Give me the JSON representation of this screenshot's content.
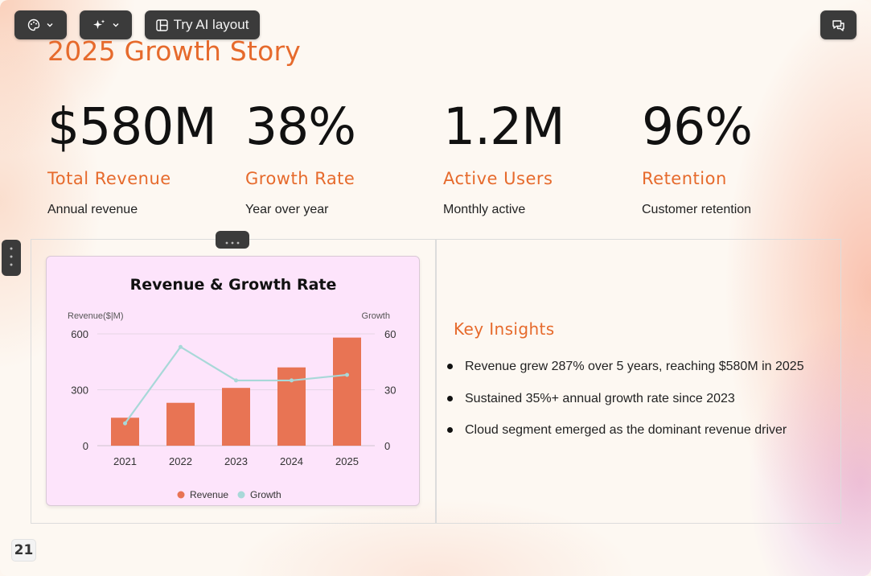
{
  "toolbar": {
    "theme_icon": "palette-icon",
    "ai_icon": "sparkle-icon",
    "layout_label": "Try AI layout",
    "layout_icon": "layout-icon",
    "comment_icon": "comment-icon"
  },
  "slide": {
    "title": "2025 Growth Story",
    "page_number": "21",
    "stats": [
      {
        "value": "$580M",
        "label": "Total Revenue",
        "sub": "Annual revenue"
      },
      {
        "value": "38%",
        "label": "Growth Rate",
        "sub": "Year over year"
      },
      {
        "value": "1.2M",
        "label": "Active Users",
        "sub": "Monthly active"
      },
      {
        "value": "96%",
        "label": "Retention",
        "sub": "Customer retention"
      }
    ],
    "insights": {
      "title": "Key Insights",
      "items": [
        "Revenue grew 287% over 5 years, reaching $580M in 2025",
        "Sustained 35%+ annual growth rate since 2023",
        "Cloud segment emerged as the dominant revenue driver"
      ]
    }
  },
  "colors": {
    "accent": "#e66a2c",
    "bar": "#e87454",
    "line": "#a8d8d8",
    "chart_bg": "#fde4fb"
  },
  "chart_data": {
    "type": "bar",
    "title": "Revenue & Growth Rate",
    "categories": [
      "2021",
      "2022",
      "2023",
      "2024",
      "2025"
    ],
    "series": [
      {
        "name": "Revenue",
        "type": "bar",
        "axis": "left",
        "values": [
          150,
          230,
          310,
          420,
          580
        ]
      },
      {
        "name": "Growth",
        "type": "line",
        "axis": "right",
        "values": [
          12,
          53,
          35,
          35,
          38
        ]
      }
    ],
    "ylabel": "Revenue($|M)",
    "ylabel_right": "Growth",
    "ylim": [
      0,
      600
    ],
    "ylim_right": [
      0,
      60
    ],
    "yticks": [
      "0",
      "300",
      "600"
    ],
    "yticks_right": [
      "0",
      "30",
      "60"
    ],
    "grid": true,
    "legend": "bottom"
  }
}
